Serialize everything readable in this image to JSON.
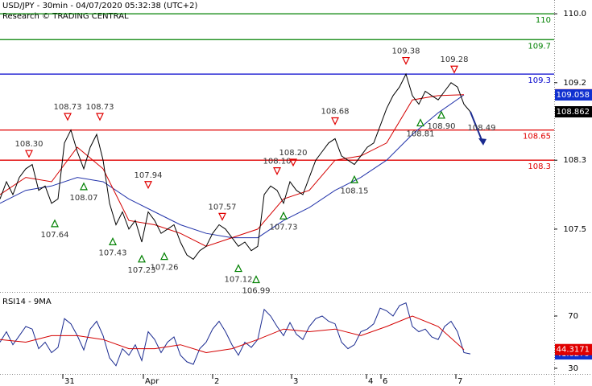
{
  "chart_data": {
    "type": "line",
    "title": "USD/JPY - 30min - 04/07/2020 05:32:38 (UTC+2)",
    "subtitle": "Research © TRADING CENTRAL",
    "xlim": [
      0,
      172
    ],
    "xticks": [
      {
        "value": 19.5,
        "label": "31"
      },
      {
        "value": 44.5,
        "label": "Apr"
      },
      {
        "value": 66,
        "label": "2"
      },
      {
        "value": 90.5,
        "label": "3"
      },
      {
        "value": 113.75,
        "label": "4"
      },
      {
        "value": 118.25,
        "label": "6"
      },
      {
        "value": 141.5,
        "label": "7"
      }
    ],
    "ylim": [
      106.78,
      110.16
    ],
    "yticks": [
      107.5,
      108.3,
      109.2,
      {
        "value": 110,
        "label": "110.0"
      }
    ],
    "series": [
      {
        "name": "Price",
        "color": "#000000",
        "x": [
          0,
          2,
          4,
          6,
          8,
          10,
          12,
          14,
          16,
          18,
          20,
          22,
          24,
          26,
          28,
          30,
          32,
          34,
          36,
          38,
          40,
          42,
          44,
          46,
          48,
          50,
          52,
          54,
          56,
          58,
          60,
          62,
          64,
          66,
          68,
          70,
          72,
          74,
          76,
          78,
          80,
          82,
          84,
          86,
          88,
          90,
          92,
          94,
          96,
          98,
          100,
          102,
          104,
          106,
          108,
          110,
          112,
          114,
          116,
          118,
          120,
          122,
          124,
          126,
          128,
          130,
          132,
          134,
          136,
          138,
          140,
          142,
          144,
          146
        ],
        "values": [
          107.85,
          108.05,
          107.9,
          108.1,
          108.2,
          108.25,
          107.95,
          108.0,
          107.8,
          107.85,
          108.5,
          108.65,
          108.4,
          108.2,
          108.45,
          108.6,
          108.3,
          107.8,
          107.55,
          107.7,
          107.5,
          107.6,
          107.35,
          107.7,
          107.6,
          107.45,
          107.5,
          107.55,
          107.35,
          107.2,
          107.15,
          107.25,
          107.3,
          107.45,
          107.55,
          107.5,
          107.4,
          107.3,
          107.35,
          107.25,
          107.3,
          107.9,
          108.0,
          107.95,
          107.8,
          108.05,
          107.95,
          107.9,
          108.1,
          108.3,
          108.4,
          108.5,
          108.55,
          108.35,
          108.3,
          108.25,
          108.35,
          108.45,
          108.5,
          108.7,
          108.9,
          109.05,
          109.15,
          109.3,
          109.05,
          108.95,
          109.1,
          109.05,
          109.0,
          109.1,
          109.2,
          109.15,
          108.95,
          108.862
        ],
        "box": "#000000"
      },
      {
        "name": "Fast MA",
        "color": "#d40000",
        "x": [
          0,
          8,
          16,
          24,
          32,
          40,
          48,
          56,
          64,
          72,
          80,
          88,
          96,
          104,
          112,
          120,
          128,
          136,
          144
        ],
        "values": [
          107.9,
          108.1,
          108.05,
          108.45,
          108.2,
          107.6,
          107.55,
          107.45,
          107.3,
          107.4,
          107.5,
          107.85,
          107.95,
          108.3,
          108.35,
          108.5,
          109.0,
          109.05,
          109.06
        ],
        "box": "#e00000"
      },
      {
        "name": "Slow MA",
        "color": "#2233aa",
        "x": [
          0,
          8,
          16,
          24,
          32,
          40,
          48,
          56,
          64,
          72,
          80,
          88,
          96,
          104,
          112,
          120,
          128,
          136,
          144
        ],
        "values": [
          107.8,
          107.95,
          108.0,
          108.1,
          108.05,
          107.85,
          107.7,
          107.55,
          107.45,
          107.4,
          107.4,
          107.6,
          107.75,
          107.95,
          108.1,
          108.3,
          108.6,
          108.85,
          109.058
        ],
        "box": "#1030d0"
      }
    ],
    "levels": [
      {
        "value": 110,
        "color": "#008000"
      },
      {
        "value": 109.7,
        "color": "#008000"
      },
      {
        "value": 109.3,
        "color": "#0000cc"
      },
      {
        "value": 108.65,
        "color": "#e00000"
      },
      {
        "value": 108.3,
        "color": "#e00000"
      }
    ],
    "annotations": [
      {
        "label": "108.30",
        "value": 108.3,
        "x": 9,
        "kind": "peak"
      },
      {
        "label": "107.64",
        "value": 107.64,
        "x": 17,
        "kind": "trough"
      },
      {
        "label": "108.73",
        "value": 108.73,
        "x": 21,
        "kind": "peak"
      },
      {
        "label": "108.07",
        "value": 108.07,
        "x": 26,
        "kind": "trough"
      },
      {
        "label": "108.73",
        "value": 108.73,
        "x": 31,
        "kind": "peak"
      },
      {
        "label": "107.43",
        "value": 107.43,
        "x": 35,
        "kind": "trough"
      },
      {
        "label": "107.23",
        "value": 107.23,
        "x": 44,
        "kind": "trough"
      },
      {
        "label": "107.94",
        "value": 107.94,
        "x": 46,
        "kind": "peak"
      },
      {
        "label": "107.26",
        "value": 107.26,
        "x": 51,
        "kind": "trough"
      },
      {
        "label": "107.57",
        "value": 107.57,
        "x": 69,
        "kind": "peak"
      },
      {
        "label": "107.12",
        "value": 107.12,
        "x": 74,
        "kind": "trough"
      },
      {
        "label": "106.99",
        "value": 106.99,
        "x": 79.5,
        "kind": "trough"
      },
      {
        "label": "108.10",
        "value": 108.1,
        "x": 86,
        "kind": "peak"
      },
      {
        "label": "107.73",
        "value": 107.73,
        "x": 88,
        "kind": "trough"
      },
      {
        "label": "108.20",
        "value": 108.2,
        "x": 91,
        "kind": "peak"
      },
      {
        "label": "108.68",
        "value": 108.68,
        "x": 104,
        "kind": "peak"
      },
      {
        "label": "108.15",
        "value": 108.15,
        "x": 110,
        "kind": "trough"
      },
      {
        "label": "109.38",
        "value": 109.38,
        "x": 126,
        "kind": "peak"
      },
      {
        "label": "108.81",
        "value": 108.81,
        "x": 130.5,
        "kind": "trough"
      },
      {
        "label": "108.90",
        "value": 108.9,
        "x": 137,
        "kind": "trough"
      },
      {
        "label": "109.28",
        "value": 109.28,
        "x": 141,
        "kind": "peak"
      }
    ],
    "forecast": {
      "label": "108.49",
      "value": 108.49,
      "x": 150,
      "color": "#1a2a90"
    },
    "rsi": {
      "title": "RSI14 - 9MA",
      "ylim": [
        25.7,
        87.2
      ],
      "yticks": [
        30,
        70
      ],
      "series": [
        {
          "name": "RSI",
          "color": "#1a2a90",
          "box": "#1030d0",
          "x": [
            0,
            2,
            4,
            6,
            8,
            10,
            12,
            14,
            16,
            18,
            20,
            22,
            24,
            26,
            28,
            30,
            32,
            34,
            36,
            38,
            40,
            42,
            44,
            46,
            48,
            50,
            52,
            54,
            56,
            58,
            60,
            62,
            64,
            66,
            68,
            70,
            72,
            74,
            76,
            78,
            80,
            82,
            84,
            86,
            88,
            90,
            92,
            94,
            96,
            98,
            100,
            102,
            104,
            106,
            108,
            110,
            112,
            114,
            116,
            118,
            120,
            122,
            124,
            126,
            128,
            130,
            132,
            134,
            136,
            138,
            140,
            142,
            144,
            146
          ],
          "values": [
            50,
            58,
            48,
            55,
            62,
            60,
            45,
            50,
            42,
            46,
            68,
            64,
            55,
            44,
            60,
            66,
            55,
            38,
            32,
            45,
            40,
            48,
            36,
            58,
            52,
            42,
            50,
            54,
            40,
            35,
            33,
            45,
            50,
            60,
            66,
            58,
            48,
            40,
            50,
            46,
            52,
            75,
            70,
            62,
            55,
            65,
            56,
            52,
            62,
            68,
            70,
            66,
            64,
            50,
            45,
            48,
            58,
            60,
            64,
            76,
            74,
            70,
            78,
            80,
            62,
            58,
            60,
            54,
            52,
            62,
            66,
            58,
            42,
            41.0279
          ]
        },
        {
          "name": "MA",
          "color": "#d40000",
          "box": "#e00000",
          "x": [
            0,
            8,
            16,
            24,
            32,
            40,
            48,
            56,
            64,
            72,
            80,
            88,
            96,
            104,
            112,
            120,
            128,
            136,
            144
          ],
          "values": [
            52,
            50,
            55,
            55,
            52,
            45,
            45,
            48,
            42,
            45,
            52,
            60,
            58,
            60,
            55,
            62,
            70,
            62,
            44.3171
          ]
        }
      ]
    }
  }
}
